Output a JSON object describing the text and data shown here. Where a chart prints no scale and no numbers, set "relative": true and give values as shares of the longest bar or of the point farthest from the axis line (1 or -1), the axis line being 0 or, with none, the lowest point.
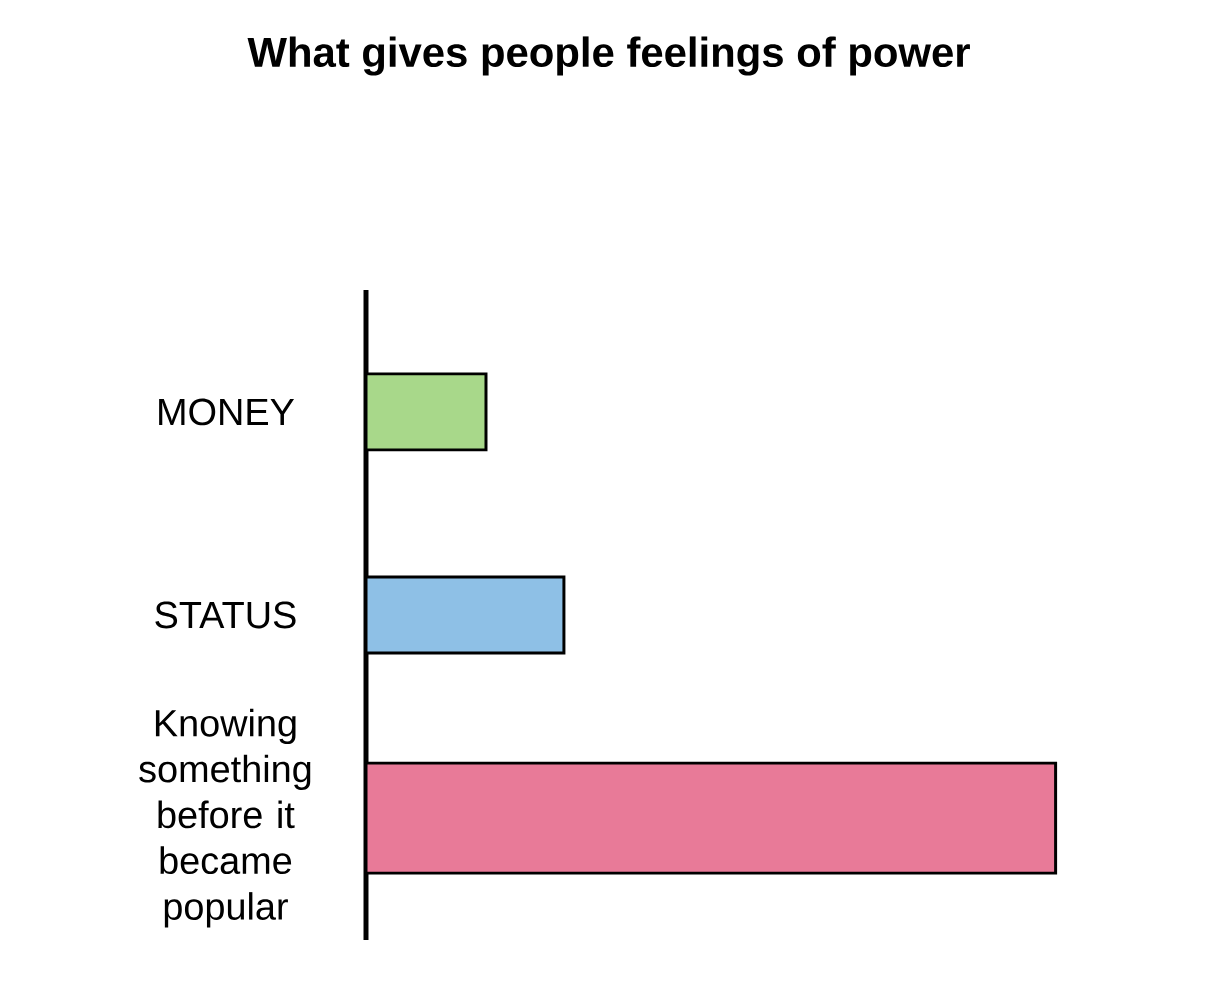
{
  "chart_data": {
    "type": "bar",
    "orientation": "horizontal",
    "relative": true,
    "title": "What gives people feelings of power",
    "categories": [
      "MONEY",
      "STATUS",
      "Knowing something before it became popular"
    ],
    "values": [
      0.174,
      0.287,
      1
    ],
    "colors": [
      "#a8d88a",
      "#8ec0e6",
      "#e87a98"
    ]
  }
}
